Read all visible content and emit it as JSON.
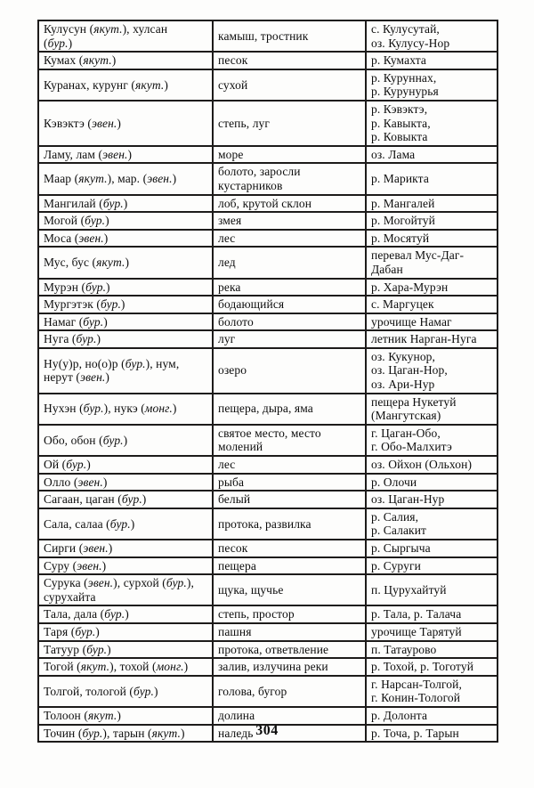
{
  "page": {
    "number": "304"
  },
  "table": {
    "rows": [
      {
        "term": "Кулусун (якут.), хулсан\n(бур.)",
        "meaning": "камыш, тростник",
        "examples": "с. Кулусутай,\nоз. Кулусу-Нор"
      },
      {
        "term": "Кумах (якут.)",
        "meaning": "песок",
        "examples": "р. Кумахта"
      },
      {
        "term": "Куранах, курунг (якут.)",
        "meaning": "сухой",
        "examples": "р. Куруннах,\nр. Курунурья"
      },
      {
        "term": "Кэвэктэ (эвен.)",
        "meaning": "степь, луг",
        "examples": "р. Кэвэктэ,\nр. Кавыкта,\nр. Ковыкта"
      },
      {
        "term": "Ламу, лам (эвен.)",
        "meaning": "море",
        "examples": "оз. Лама"
      },
      {
        "term": "Маар (якут.), мар. (эвен.)",
        "meaning": "болото, заросли\nкустарников",
        "examples": "р. Марикта"
      },
      {
        "term": "Мангилай (бур.)",
        "meaning": "лоб, крутой склон",
        "examples": "р. Мангалей"
      },
      {
        "term": "Могой (бур.)",
        "meaning": "змея",
        "examples": "р. Могойтуй"
      },
      {
        "term": "Моса (эвен.)",
        "meaning": "лес",
        "examples": "р. Мосятуй"
      },
      {
        "term": "Мус, бус (якут.)",
        "meaning": "лед",
        "examples": "перевал Мус-Даг-\nДабан"
      },
      {
        "term": "Мурэн (бур.)",
        "meaning": "река",
        "examples": "р. Хара-Мурэн"
      },
      {
        "term": "Мургэтэк (бур.)",
        "meaning": "бодающийся",
        "examples": "с. Маргуцек"
      },
      {
        "term": "Намаг (бур.)",
        "meaning": "болото",
        "examples": "урочище Намаг"
      },
      {
        "term": "Нуга (бур.)",
        "meaning": "луг",
        "examples": "летник Нарган-Нуга"
      },
      {
        "term": "Ну(у)р, но(о)р (бур.), нум,\nнерут (эвен.)",
        "meaning": "озеро",
        "examples": "оз. Кукунор,\nоз. Цаган-Нор,\nоз. Ари-Нур"
      },
      {
        "term": "Нухэн (бур.), нукэ (монг.)",
        "meaning": "пещера, дыра, яма",
        "examples": "пещера Нукетуй\n(Мангутская)"
      },
      {
        "term": "Обо, обон (бур.)",
        "meaning": "святое место, место\nмолений",
        "examples": "г. Цаган-Обо,\nг. Обо-Малхитэ"
      },
      {
        "term": "Ой (бур.)",
        "meaning": "лес",
        "examples": "оз. Ойхон (Ольхон)"
      },
      {
        "term": "Олло (эвен.)",
        "meaning": "рыба",
        "examples": "р. Олочи"
      },
      {
        "term": "Сагаан, цаган (бур.)",
        "meaning": "белый",
        "examples": "оз. Цаган-Нур"
      },
      {
        "term": "Сала, салаа (бур.)",
        "meaning": "протока, развилка",
        "examples": "р. Салия,\nр. Салакит"
      },
      {
        "term": "Сирги (эвен.)",
        "meaning": "песок",
        "examples": "р. Сыргыча"
      },
      {
        "term": "Суру (эвен.)",
        "meaning": "пещера",
        "examples": "р. Суруги"
      },
      {
        "term": "Сурука (эвен.), сурхой (бур.),\nсурухайта",
        "meaning": "щука, щучье",
        "examples": "п. Цурухайтуй"
      },
      {
        "term": "Тала, дала (бур.)",
        "meaning": "степь, простор",
        "examples": "р. Тала, р. Талача"
      },
      {
        "term": "Таря (бур.)",
        "meaning": "пашня",
        "examples": "урочище Тарятуй"
      },
      {
        "term": "Татуур (бур.)",
        "meaning": "протока, ответвление",
        "examples": "п. Татаурово"
      },
      {
        "term": "Тогой (якут.), тохой (монг.)",
        "meaning": "залив, излучина реки",
        "examples": "р. Тохой, р. Тоготуй"
      },
      {
        "term": "Толгой, тологой (бур.)",
        "meaning": "голова, бугор",
        "examples": "г. Нарсан-Толгой,\nг. Конин-Тологой"
      },
      {
        "term": "Толоон (якут.)",
        "meaning": "долина",
        "examples": "р. Долонта"
      },
      {
        "term": "Точин (бур.), тарын (якут.)",
        "meaning": "наледь",
        "examples": "р. Точа, р. Тарын"
      }
    ]
  }
}
